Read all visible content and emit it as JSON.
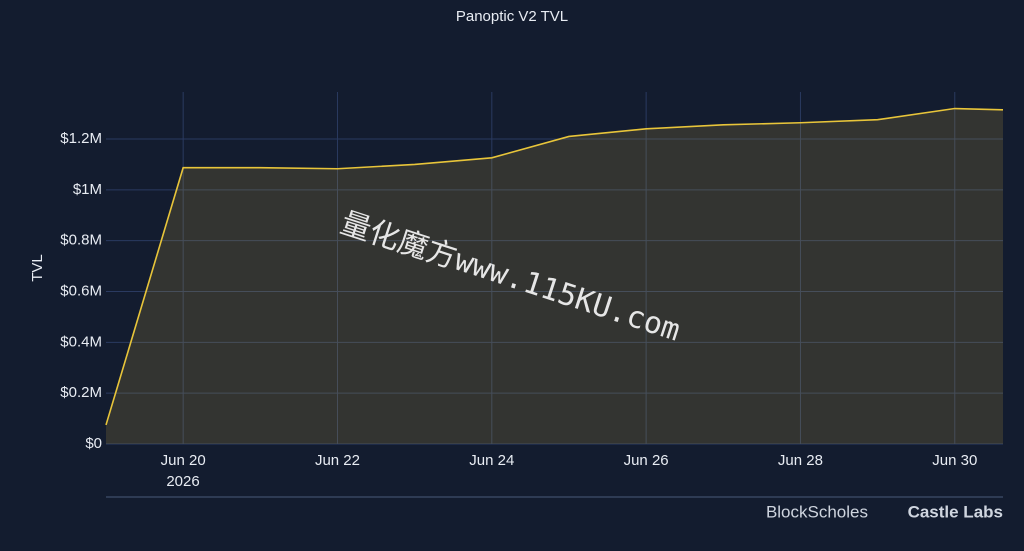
{
  "chart_data": {
    "type": "area",
    "title": "Panoptic V2 TVL",
    "y_label": "TVL",
    "x": [
      "2026-06-19T00:00",
      "2026-06-20T00:00",
      "2026-06-21T00:00",
      "2026-06-22T00:00",
      "2026-06-23T00:00",
      "2026-06-24T00:00",
      "2026-06-25T00:00",
      "2026-06-26T00:00",
      "2026-06-27T00:00",
      "2026-06-28T00:00",
      "2026-06-29T00:00",
      "2026-06-30T00:00",
      "2026-06-30T15:00"
    ],
    "series": [
      {
        "name": "TVL",
        "color": "#e8c53a",
        "values": [
          75000,
          1087000,
          1087000,
          1083000,
          1100000,
          1126000,
          1210000,
          1240000,
          1256000,
          1264000,
          1276000,
          1320000,
          1315000
        ]
      }
    ],
    "xlim": [
      "2026-06-19T00:00",
      "2026-06-30T15:00"
    ],
    "xticks": [
      {
        "value": "2026-06-20T00:00",
        "label": "Jun 20"
      },
      {
        "value": "2026-06-22T00:00",
        "label": "Jun 22"
      },
      {
        "value": "2026-06-24T00:00",
        "label": "Jun 24"
      },
      {
        "value": "2026-06-26T00:00",
        "label": "Jun 26"
      },
      {
        "value": "2026-06-28T00:00",
        "label": "Jun 28"
      },
      {
        "value": "2026-06-30T00:00",
        "label": "Jun 30"
      }
    ],
    "x_year_label": "2026",
    "ylim": [
      0,
      1385000
    ],
    "yticks": [
      {
        "value": 0,
        "label": "$0"
      },
      {
        "value": 200000,
        "label": "$0.2M"
      },
      {
        "value": 400000,
        "label": "$0.4M"
      },
      {
        "value": 600000,
        "label": "$0.6M"
      },
      {
        "value": 800000,
        "label": "$0.8M"
      },
      {
        "value": 1000000,
        "label": "$1M"
      },
      {
        "value": 1200000,
        "label": "$1.2M"
      }
    ],
    "grid": true,
    "watermark": "量化魔方www.115KU.com",
    "footer_logos": [
      "BlockScholes",
      "Castle Labs"
    ]
  }
}
